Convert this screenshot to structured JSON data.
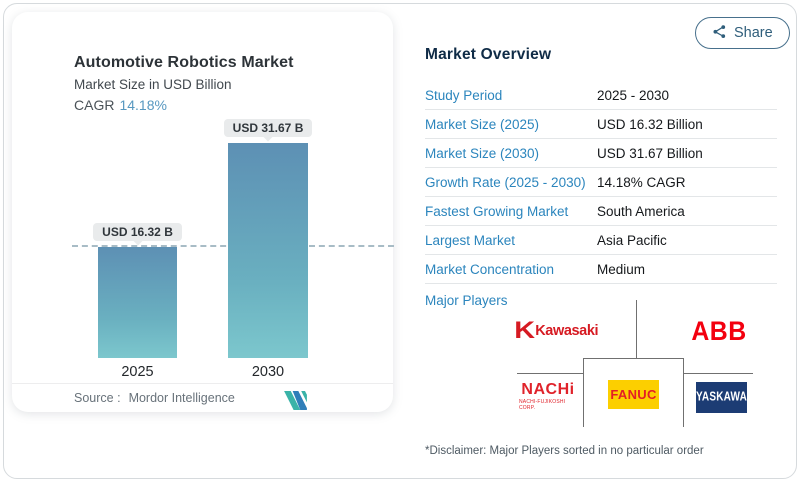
{
  "page": {
    "share_label": "Share"
  },
  "chart_card": {
    "title": "Automotive Robotics Market",
    "subtitle": "Market Size in USD Billion",
    "cagr_label": "CAGR",
    "cagr_value": "14.18%",
    "source_label": "Source :",
    "source_value": "Mordor Intelligence",
    "bars": [
      {
        "year": "2025",
        "label": "USD 16.32 B",
        "value": 16.32
      },
      {
        "year": "2030",
        "label": "USD 31.67 B",
        "value": 31.67
      }
    ]
  },
  "chart_data": {
    "type": "bar",
    "title": "Automotive Robotics Market",
    "subtitle": "Market Size in USD Billion",
    "categories": [
      "2025",
      "2030"
    ],
    "values": [
      16.32,
      31.67
    ],
    "ylabel": "Market Size (USD Billion)",
    "data_labels": [
      "USD 16.32 B",
      "USD 31.67 B"
    ],
    "reference_line": 16.32,
    "cagr": "14.18%",
    "grid": false,
    "bar_color_gradient": [
      "#5d90b4",
      "#7cc7cd"
    ]
  },
  "overview": {
    "title": "Market Overview",
    "rows": [
      {
        "label": "Study Period",
        "value": "2025 - 2030"
      },
      {
        "label": "Market Size (2025)",
        "value": "USD 16.32 Billion"
      },
      {
        "label": "Market Size (2030)",
        "value": "USD 31.67 Billion"
      },
      {
        "label": "Growth Rate (2025 - 2030)",
        "value": "14.18% CAGR"
      },
      {
        "label": "Fastest Growing Market",
        "value": "South America"
      },
      {
        "label": "Largest Market",
        "value": "Asia Pacific"
      },
      {
        "label": "Market Concentration",
        "value": "Medium"
      }
    ],
    "major_players_label": "Major Players",
    "players": {
      "kawasaki_symbol": "K",
      "kawasaki": "Kawasaki",
      "abb": "ABB",
      "nachi": "NACHi",
      "nachi_sub": "NACHI-FUJIKOSHI CORP.",
      "fanuc": "FANUC",
      "yaskawa": "YASKAWA"
    },
    "disclaimer": "*Disclaimer: Major Players sorted in no particular order"
  },
  "colors": {
    "accent_blue": "#2b85bd",
    "cagr_blue": "#5798c0",
    "bar_top": "#5d90b4",
    "bar_bottom": "#7cc7cd",
    "kawasaki_red": "#d61a22",
    "abb_red": "#f3000f",
    "nachi_red": "#e0232b",
    "fanuc_yellow": "#fccf00",
    "fanuc_red": "#e31f26",
    "yaskawa_navy": "#1c3c74",
    "heading_navy": "#0f2b46"
  }
}
